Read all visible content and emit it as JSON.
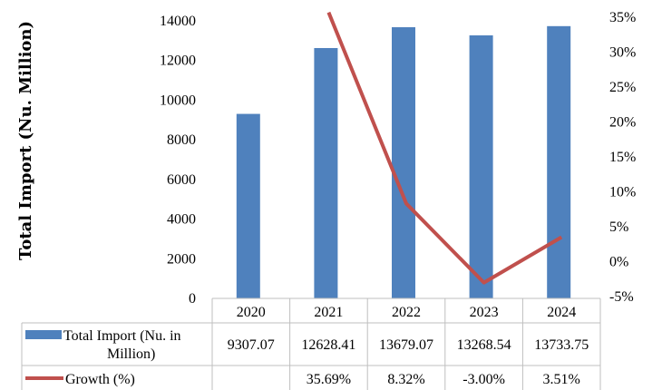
{
  "chart_data": {
    "type": "bar",
    "ylabel": "Total Import (Nu. Million)",
    "categories": [
      "2020",
      "2021",
      "2022",
      "2023",
      "2024"
    ],
    "y_left_ticks": [
      "0",
      "2000",
      "4000",
      "6000",
      "8000",
      "10000",
      "12000",
      "14000"
    ],
    "y_right_ticks": [
      "-5%",
      "0%",
      "5%",
      "10%",
      "15%",
      "20%",
      "25%",
      "30%",
      "35%"
    ],
    "ylim": [
      0,
      14000
    ],
    "ylim_right": [
      -0.05,
      0.35
    ],
    "grid": false,
    "legend": "table-below",
    "series": [
      {
        "name": "Total Import (Nu. in Million)",
        "type": "bar",
        "axis": "left",
        "color": "#4f81bd",
        "values": [
          9307.07,
          12628.41,
          13679.07,
          13268.54,
          13733.75
        ],
        "labels": [
          "9307.07",
          "12628.41",
          "13679.07",
          "13268.54",
          "13733.75"
        ]
      },
      {
        "name": "Growth (%)",
        "type": "line",
        "axis": "right",
        "color": "#c0504d",
        "values": [
          null,
          0.3569,
          0.0832,
          -0.03,
          0.0351
        ],
        "labels": [
          "",
          "35.69%",
          "8.32%",
          "-3.00%",
          "3.51%"
        ]
      }
    ]
  }
}
